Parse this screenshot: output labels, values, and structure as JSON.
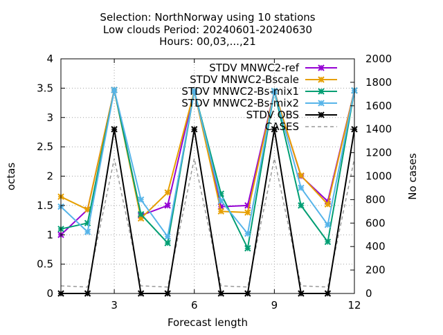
{
  "chart_data": {
    "type": "line",
    "title_lines": [
      "Selection: NorthNorway using    10 stations",
      "Low clouds   Period: 20240601-20240630",
      "Hours: 00,03,...,21"
    ],
    "xlabel": "Forecast length",
    "ylabel": "octas",
    "y2label": "No cases",
    "x": [
      1,
      2,
      3,
      4,
      5,
      6,
      7,
      8,
      9,
      10,
      11,
      12
    ],
    "xlim": [
      1,
      12
    ],
    "xticks": [
      3,
      6,
      9,
      12
    ],
    "ylim": [
      0,
      4
    ],
    "yticks": [
      "0",
      "0.5",
      "1",
      "1.5",
      "2",
      "2.5",
      "3",
      "3.5",
      "4"
    ],
    "y2lim": [
      0,
      2000
    ],
    "y2ticks": [
      "0",
      "200",
      "400",
      "600",
      "800",
      "1000",
      "1200",
      "1400",
      "1600",
      "1800",
      "2000"
    ],
    "grid": true,
    "legend_position": "top-right",
    "series": [
      {
        "name": "STDV MNWC2-ref",
        "color": "#9400d3",
        "axis": "y1",
        "marker": "x-star",
        "dash": "solid",
        "values": [
          1.0,
          1.43,
          3.47,
          1.33,
          1.5,
          3.45,
          1.48,
          1.5,
          3.45,
          2.0,
          1.57,
          3.46
        ]
      },
      {
        "name": "STDV MNWC2-Bscale",
        "color": "#e69f00",
        "axis": "y1",
        "marker": "x-star",
        "dash": "solid",
        "values": [
          1.65,
          1.43,
          3.47,
          1.28,
          1.72,
          3.45,
          1.4,
          1.38,
          3.45,
          2.01,
          1.52,
          3.46
        ]
      },
      {
        "name": "STDV MNWC2-Bs-mix1",
        "color": "#009e73",
        "axis": "y1",
        "marker": "x-star",
        "dash": "solid",
        "values": [
          1.1,
          1.2,
          3.47,
          1.35,
          0.86,
          3.45,
          1.7,
          0.77,
          3.45,
          1.5,
          0.88,
          3.46
        ]
      },
      {
        "name": "STDV MNWC2-Bs-mix2",
        "color": "#56b4e9",
        "axis": "y1",
        "marker": "x-star",
        "dash": "solid",
        "values": [
          1.48,
          1.05,
          3.47,
          1.6,
          0.97,
          3.45,
          1.58,
          1.02,
          3.45,
          1.8,
          1.17,
          3.46
        ]
      },
      {
        "name": "STDV OBS",
        "color": "#000000",
        "axis": "y1",
        "marker": "x-star",
        "dash": "solid",
        "values": [
          0,
          0,
          2.8,
          0,
          0,
          2.8,
          0,
          0,
          2.8,
          0,
          0,
          2.8
        ]
      },
      {
        "name": "CASES",
        "color": "#999999",
        "axis": "y2",
        "marker": "none",
        "dash": "dashed",
        "values": [
          65,
          55,
          1150,
          65,
          55,
          1150,
          65,
          55,
          1150,
          65,
          55,
          1150
        ]
      }
    ]
  }
}
